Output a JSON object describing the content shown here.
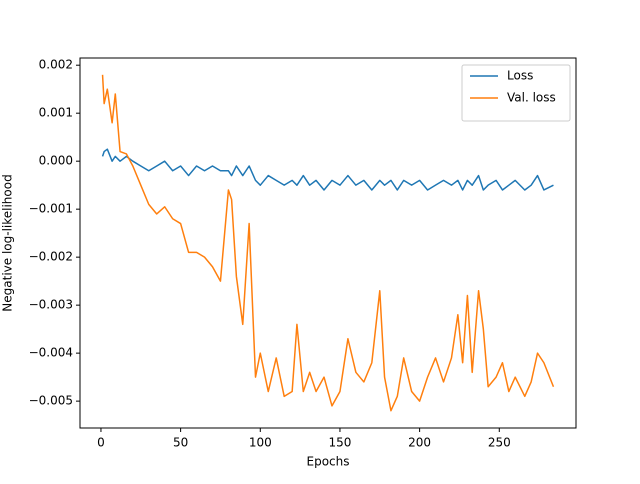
{
  "chart_data": {
    "type": "line",
    "xlabel": "Epochs",
    "ylabel": "Negative log-likelihood",
    "x": [
      1,
      2,
      4,
      7,
      9,
      12,
      16,
      20,
      25,
      30,
      35,
      40,
      45,
      50,
      55,
      60,
      65,
      70,
      75,
      80,
      82,
      85,
      89,
      93,
      97,
      100,
      105,
      110,
      115,
      120,
      123,
      127,
      131,
      135,
      140,
      145,
      150,
      155,
      160,
      165,
      170,
      175,
      178,
      182,
      186,
      190,
      195,
      200,
      205,
      210,
      215,
      220,
      224,
      227,
      230,
      233,
      237,
      240,
      243,
      248,
      252,
      256,
      260,
      266,
      270,
      274,
      278,
      284
    ],
    "series": [
      {
        "name": "Loss",
        "color": "#1f77b4",
        "values": [
          0.0001,
          0.0002,
          0.00025,
          0.0,
          0.0001,
          0.0,
          0.0001,
          0.0,
          -0.0001,
          -0.0002,
          -0.0001,
          0.0,
          -0.0002,
          -0.0001,
          -0.0003,
          -0.0001,
          -0.0002,
          -0.0001,
          -0.0002,
          -0.0002,
          -0.0003,
          -0.0001,
          -0.0003,
          -0.0001,
          -0.0004,
          -0.0005,
          -0.0003,
          -0.0004,
          -0.0005,
          -0.0004,
          -0.0005,
          -0.0003,
          -0.0005,
          -0.0004,
          -0.0006,
          -0.0004,
          -0.0005,
          -0.0003,
          -0.0005,
          -0.0004,
          -0.0006,
          -0.0004,
          -0.0005,
          -0.0004,
          -0.0006,
          -0.0004,
          -0.0005,
          -0.0004,
          -0.0006,
          -0.0005,
          -0.0004,
          -0.0005,
          -0.0004,
          -0.0006,
          -0.0004,
          -0.0005,
          -0.0003,
          -0.0006,
          -0.0005,
          -0.0004,
          -0.0006,
          -0.0005,
          -0.0004,
          -0.0006,
          -0.0005,
          -0.0003,
          -0.0006,
          -0.0005
        ]
      },
      {
        "name": "Val. loss",
        "color": "#ff7f0e",
        "values": [
          0.0018,
          0.0012,
          0.0015,
          0.0008,
          0.0014,
          0.0002,
          0.00015,
          -0.0001,
          -0.0005,
          -0.0009,
          -0.0011,
          -0.00095,
          -0.0012,
          -0.0013,
          -0.0019,
          -0.0019,
          -0.002,
          -0.0022,
          -0.0025,
          -0.0006,
          -0.0008,
          -0.0024,
          -0.0034,
          -0.0013,
          -0.0045,
          -0.004,
          -0.0048,
          -0.0041,
          -0.0049,
          -0.0048,
          -0.0034,
          -0.0048,
          -0.0044,
          -0.0048,
          -0.0045,
          -0.0051,
          -0.0048,
          -0.0037,
          -0.0044,
          -0.0046,
          -0.0042,
          -0.0027,
          -0.0045,
          -0.0052,
          -0.0049,
          -0.0041,
          -0.0048,
          -0.005,
          -0.0045,
          -0.0041,
          -0.0046,
          -0.0041,
          -0.0032,
          -0.0042,
          -0.0028,
          -0.0044,
          -0.0027,
          -0.0035,
          -0.0047,
          -0.0045,
          -0.0042,
          -0.0048,
          -0.0045,
          -0.0049,
          -0.0046,
          -0.004,
          -0.0042,
          -0.0047
        ]
      }
    ],
    "xlim": [
      -13.15,
      298.15
    ],
    "xticks": [
      0,
      50,
      100,
      150,
      200,
      250
    ],
    "ylim": [
      -0.00556,
      0.00215
    ],
    "yticks": [
      {
        "value": -0.005,
        "label": "−0.005"
      },
      {
        "value": -0.004,
        "label": "−0.004"
      },
      {
        "value": -0.003,
        "label": "−0.003"
      },
      {
        "value": -0.002,
        "label": "−0.002"
      },
      {
        "value": -0.001,
        "label": "−0.001"
      },
      {
        "value": 0,
        "label": "0.000"
      },
      0.001,
      0.002
    ],
    "legend": "upper right"
  }
}
